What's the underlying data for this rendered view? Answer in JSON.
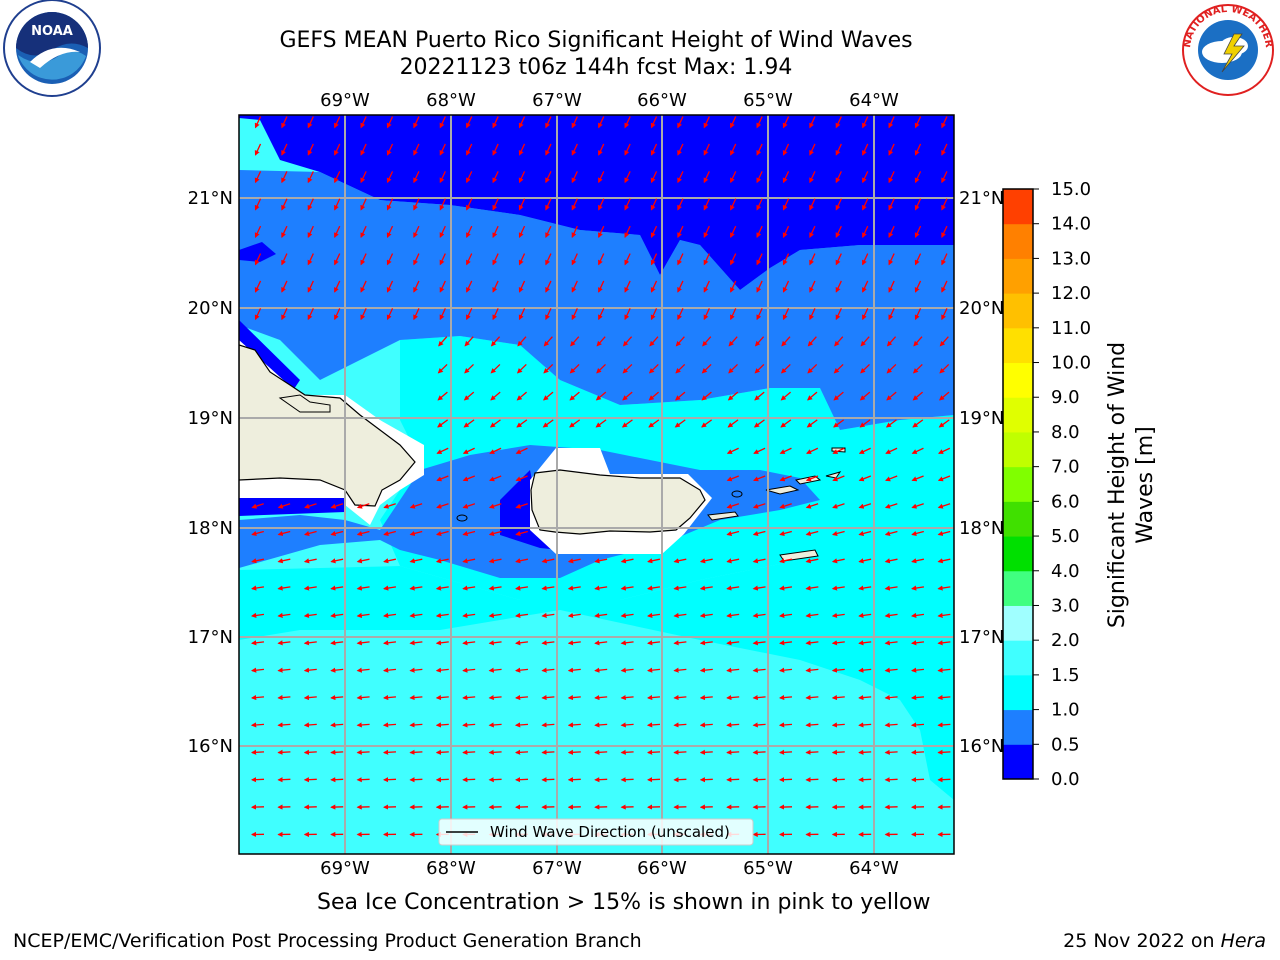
{
  "title": {
    "line1": "GEFS MEAN Puerto Rico Significant Height of Wind Waves",
    "line2": "20221123 t06z 144h fcst   Max: 1.94"
  },
  "map": {
    "lon_labels": [
      "69°W",
      "68°W",
      "67°W",
      "66°W",
      "65°W",
      "64°W"
    ],
    "lat_labels": [
      "21°N",
      "20°N",
      "19°N",
      "18°N",
      "17°N",
      "16°N"
    ],
    "legend_label": "Wind Wave Direction (unscaled)",
    "arrow_color": "#ff0000",
    "land_color": "#eeeedd"
  },
  "colorbar": {
    "label": "Significant Height of Wind Waves [m]",
    "label_line1": "Significant Height of Wind",
    "label_line2": "Waves [m]",
    "ticks": [
      "15.0",
      "14.0",
      "13.0",
      "12.0",
      "11.0",
      "10.0",
      "9.0",
      "8.0",
      "7.0",
      "6.0",
      "5.0",
      "4.0",
      "3.0",
      "2.0",
      "1.5",
      "1.0",
      "0.5",
      "0.0"
    ],
    "colors": [
      "#0000ff",
      "#1e7fff",
      "#00ffff",
      "#40ffff",
      "#a0ffff",
      "#40ff80",
      "#00e000",
      "#40e000",
      "#80ff00",
      "#c0ff00",
      "#e0ff00",
      "#ffff00",
      "#ffe000",
      "#ffc000",
      "#ffa000",
      "#ff8000",
      "#ff4000"
    ]
  },
  "caption": "Sea Ice Concentration > 15% is shown in pink to yellow",
  "footer": {
    "left": "NCEP/EMC/Verification Post Processing Product Generation Branch",
    "right_date": "25 Nov 2022 on ",
    "right_host": "Hera"
  },
  "logos": {
    "noaa": "NOAA",
    "nws_text": "NATIONAL WEATHER SERVICE"
  }
}
